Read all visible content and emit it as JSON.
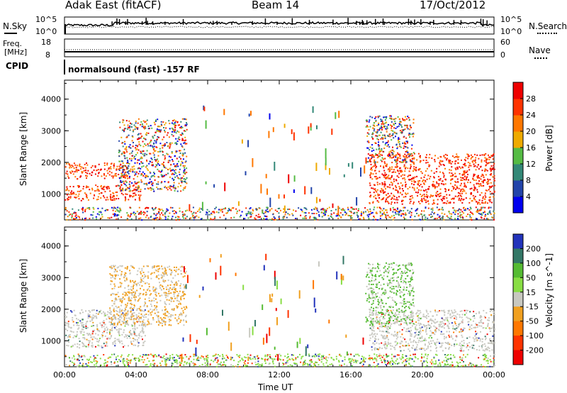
{
  "header": {
    "station": "Adak East (fitACF)",
    "beam": "Beam 14",
    "date": "17/Oct/2012"
  },
  "noise_panel": {
    "left_label": "N.Sky",
    "left_ticks": [
      "10^5",
      "10^0"
    ],
    "right_label": "N.Search",
    "right_ticks": [
      "10^5",
      "10^0"
    ]
  },
  "freq_panel": {
    "left_label_top": "Freq.",
    "left_label_bottom": "[MHz]",
    "left_ticks": [
      "18",
      "8"
    ],
    "right_label": "Nave",
    "right_ticks": [
      "60",
      "0"
    ]
  },
  "cpid": {
    "label": "CPID",
    "value": "normalsound (fast) -157 RF"
  },
  "chart_data": [
    {
      "type": "heatmap",
      "quantity": "Power",
      "ylabel": "Slant Range [km]",
      "yticks": [
        1000,
        2000,
        3000,
        4000
      ],
      "ylim": [
        180,
        4600
      ],
      "xticks": [
        "00:00",
        "04:00",
        "08:00",
        "12:00",
        "16:00",
        "20:00",
        "00:00"
      ],
      "xlim_hours": [
        0,
        24
      ],
      "colorbar": {
        "label": "Power [dB]",
        "ticks": [
          "4",
          "8",
          "12",
          "16",
          "20",
          "24",
          "28"
        ],
        "colors": [
          "#0000ee",
          "#2244aa",
          "#338877",
          "#55bb44",
          "#eeaa00",
          "#ff7700",
          "#ff3300",
          "#ee0000"
        ]
      },
      "scatter_regions": [
        {
          "t0": 0.0,
          "t1": 4.3,
          "r0": 800,
          "r1": 1300,
          "level": "high"
        },
        {
          "t0": 0.0,
          "t1": 3.5,
          "r0": 1500,
          "r1": 2000,
          "level": "high"
        },
        {
          "t0": 3.0,
          "t1": 6.8,
          "r0": 1100,
          "r1": 3400,
          "level": "mixed"
        },
        {
          "t0": 17.0,
          "t1": 24.0,
          "r0": 700,
          "r1": 1500,
          "level": "high"
        },
        {
          "t0": 17.0,
          "t1": 24.0,
          "r0": 1500,
          "r1": 2300,
          "level": "high"
        },
        {
          "t0": 16.8,
          "t1": 19.5,
          "r0": 2000,
          "r1": 3500,
          "level": "mixed"
        },
        {
          "t0": 0.0,
          "t1": 24.0,
          "r0": 200,
          "r1": 600,
          "level": "low"
        }
      ]
    },
    {
      "type": "heatmap",
      "quantity": "Velocity",
      "ylabel": "Slant Range [km]",
      "yticks": [
        1000,
        2000,
        3000,
        4000
      ],
      "ylim": [
        180,
        4600
      ],
      "xticks": [
        "00:00",
        "04:00",
        "08:00",
        "12:00",
        "16:00",
        "20:00",
        "00:00"
      ],
      "xlim_hours": [
        0,
        24
      ],
      "xlabel": "Time UT",
      "colorbar": {
        "label": "Velocity [m s^-1]",
        "ticks": [
          "200",
          "100",
          "50",
          "15",
          "-15",
          "-50",
          "-100",
          "-200"
        ],
        "colors": [
          "#2233bb",
          "#337766",
          "#55bb33",
          "#88dd44",
          "#c8c8c0",
          "#f0a020",
          "#ff7700",
          "#ff3300",
          "#ee0000"
        ]
      },
      "scatter_regions": [
        {
          "t0": 0.0,
          "t1": 4.5,
          "r0": 800,
          "r1": 2000,
          "level": "ground"
        },
        {
          "t0": 2.5,
          "t1": 6.8,
          "r0": 1500,
          "r1": 3400,
          "level": "negative"
        },
        {
          "t0": 17.0,
          "t1": 24.0,
          "r0": 700,
          "r1": 2000,
          "level": "ground"
        },
        {
          "t0": 16.8,
          "t1": 19.5,
          "r0": 1500,
          "r1": 3500,
          "level": "positive"
        },
        {
          "t0": 0.0,
          "t1": 24.0,
          "r0": 200,
          "r1": 600,
          "level": "lowmix"
        }
      ]
    }
  ]
}
